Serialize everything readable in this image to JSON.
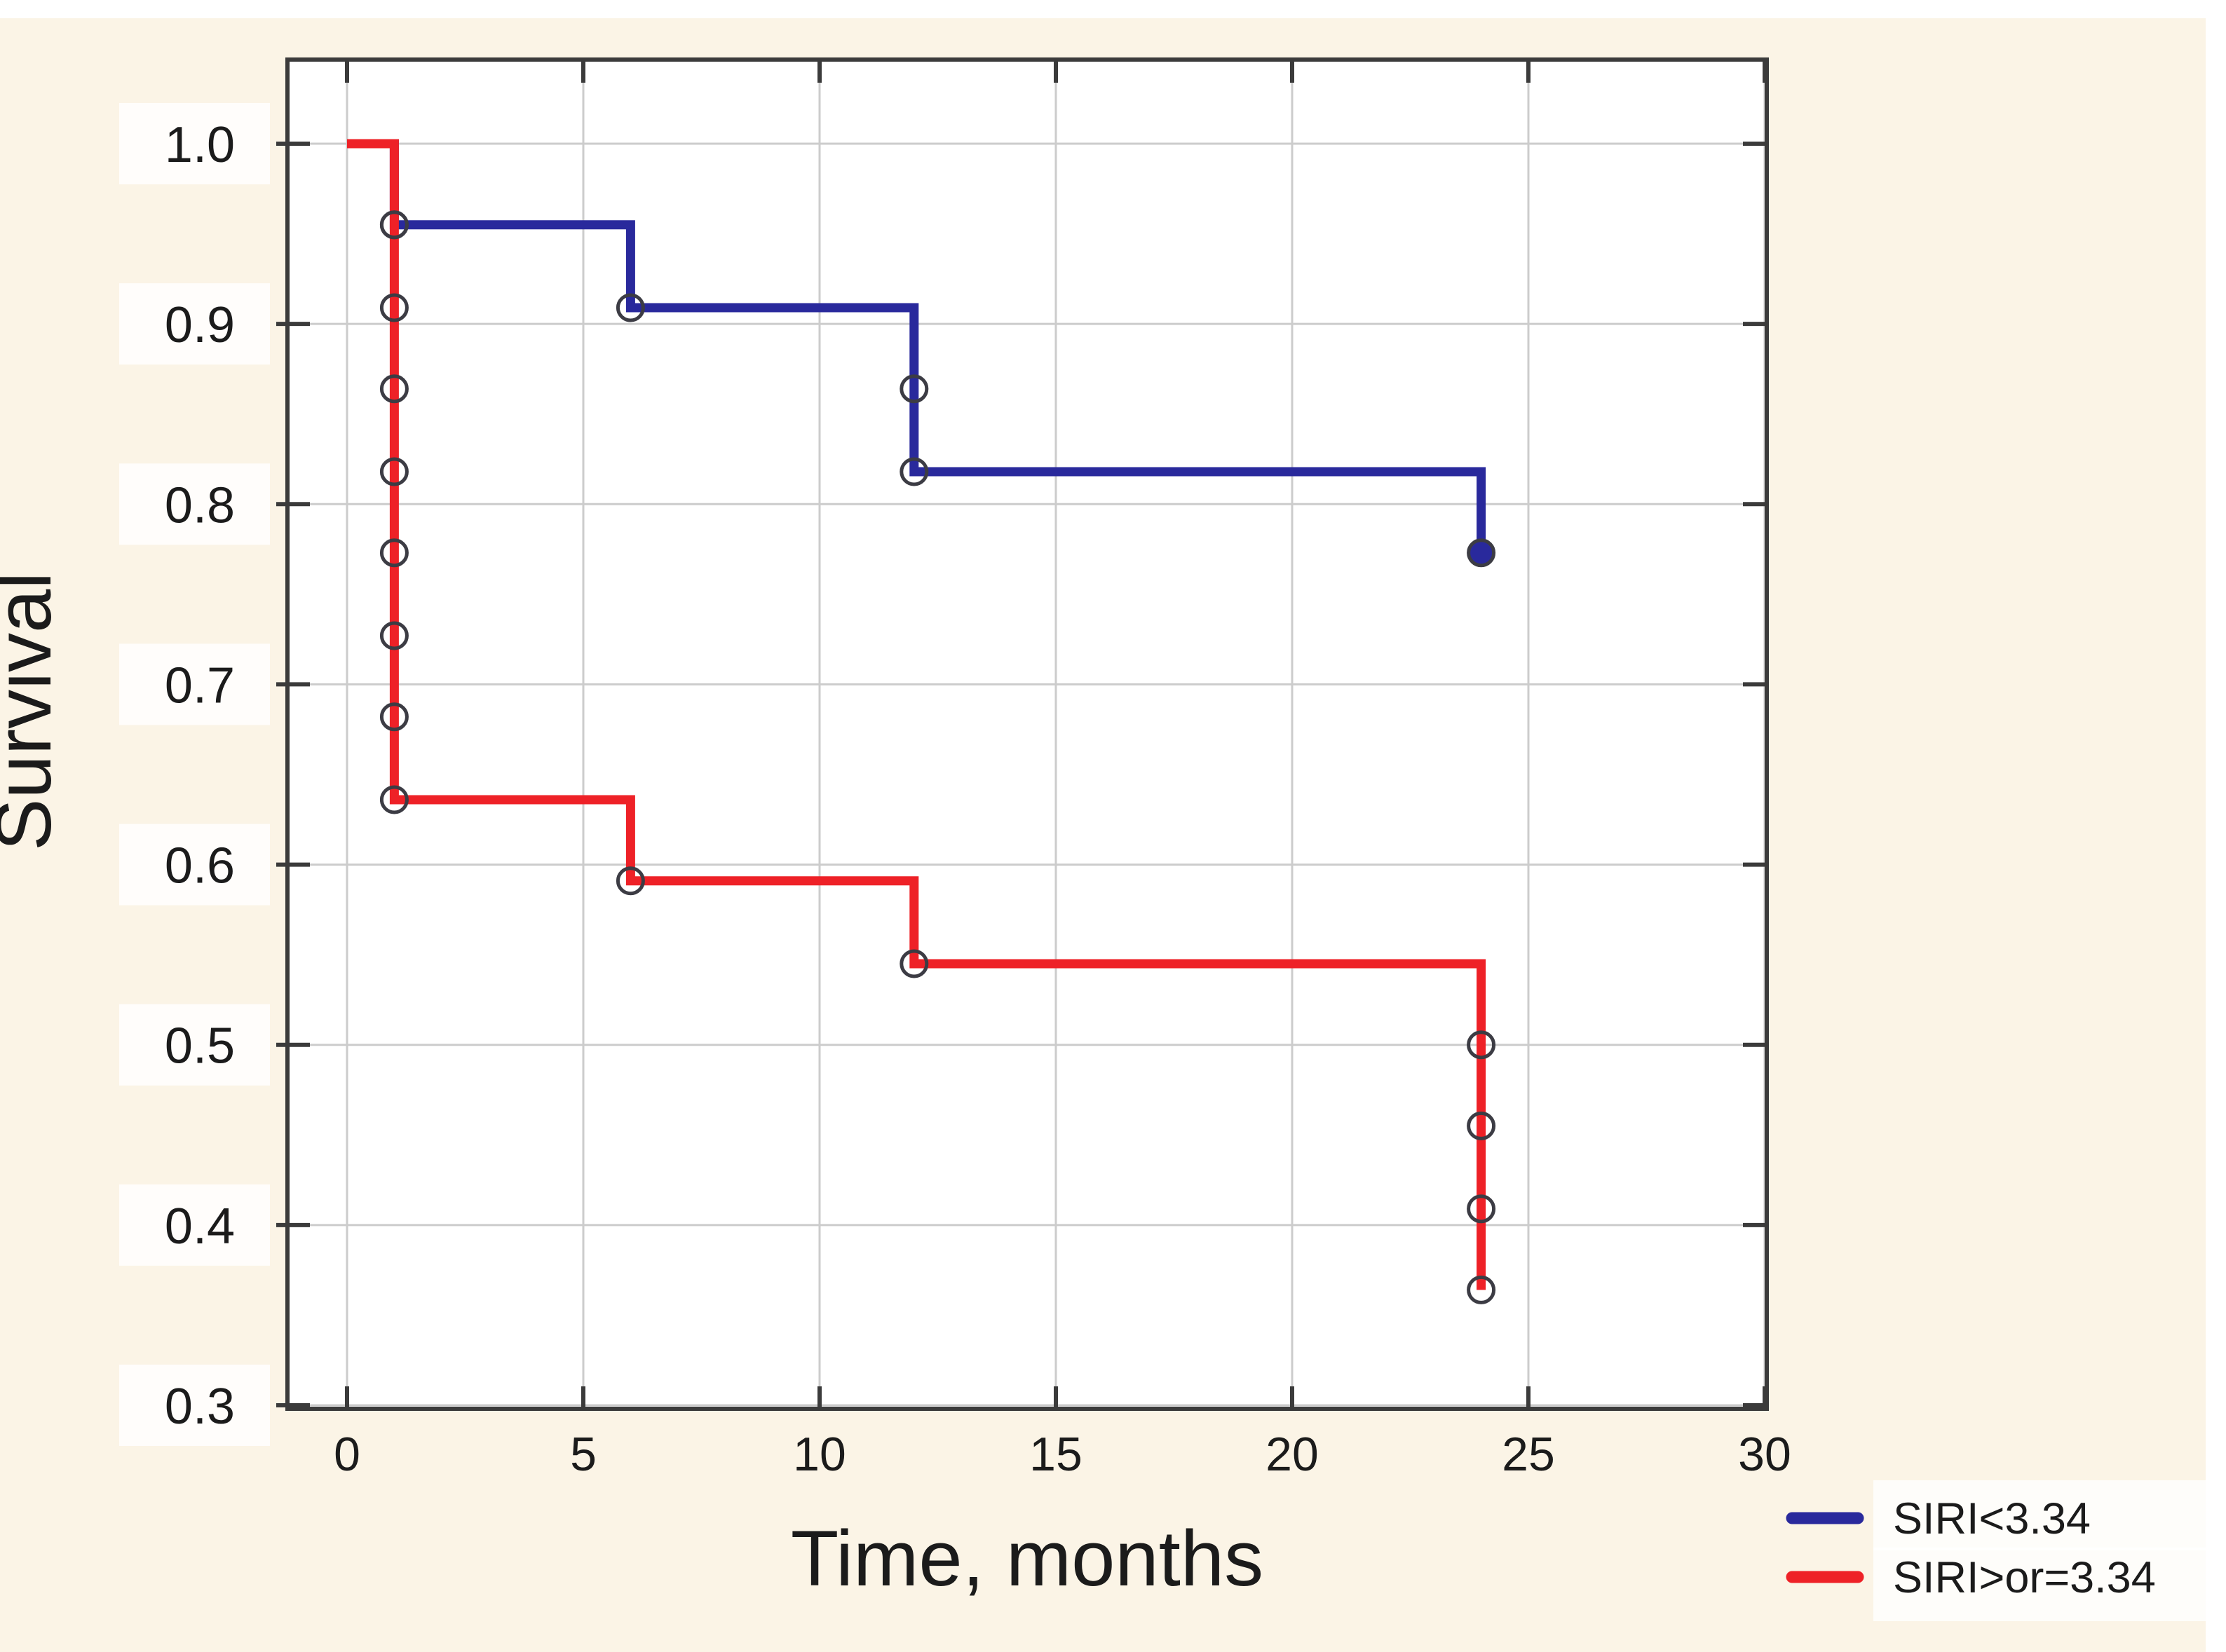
{
  "page": {
    "background": "#fbf4e6",
    "margin_color": "#ffffff"
  },
  "chart_data": {
    "type": "line",
    "chart_kind": "kaplan_meier_step_survival",
    "title": "",
    "xlabel": "Time, months",
    "ylabel": "Survival",
    "xlim": [
      0,
      30
    ],
    "ylim": [
      0.3,
      1.0
    ],
    "x_ticks": [
      0,
      5,
      10,
      15,
      20,
      25,
      30
    ],
    "y_tick_labels": [
      "1.0",
      "0.9",
      "0.8",
      "0.7",
      "0.6",
      "0.5",
      "0.4",
      "0.3"
    ],
    "y_tick_values": [
      1.0,
      0.9,
      0.8,
      0.7,
      0.6,
      0.5,
      0.4,
      0.3
    ],
    "grid": true,
    "legend_position": "bottom-right outside plot",
    "series": [
      {
        "name": "SIRI<3.34",
        "color": "#29299c",
        "line_style": "step",
        "steps_x": [
          0,
          1,
          1,
          6,
          6,
          12,
          12,
          24,
          24
        ],
        "steps_y": [
          1.0,
          1.0,
          0.955,
          0.955,
          0.909,
          0.909,
          0.818,
          0.818,
          0.773
        ],
        "markers": [
          [
            1,
            0.955
          ],
          [
            6,
            0.909
          ],
          [
            12,
            0.864
          ],
          [
            12,
            0.818
          ],
          [
            24,
            0.773
          ]
        ],
        "end_marker_filled": true
      },
      {
        "name": "SIRI>or=3.34",
        "color": "#ee2127",
        "line_style": "step",
        "steps_x": [
          0,
          1,
          1,
          6,
          6,
          12,
          12,
          24,
          24
        ],
        "steps_y": [
          1.0,
          1.0,
          0.636,
          0.636,
          0.591,
          0.591,
          0.545,
          0.545,
          0.364
        ],
        "markers": [
          [
            1,
            0.955
          ],
          [
            1,
            0.909
          ],
          [
            1,
            0.864
          ],
          [
            1,
            0.818
          ],
          [
            1,
            0.773
          ],
          [
            1,
            0.727
          ],
          [
            1,
            0.682
          ],
          [
            1,
            0.636
          ],
          [
            6,
            0.591
          ],
          [
            12,
            0.545
          ],
          [
            24,
            0.5
          ],
          [
            24,
            0.455
          ],
          [
            24,
            0.409
          ],
          [
            24,
            0.364
          ]
        ],
        "end_marker_filled": false
      }
    ],
    "styles": {
      "plot_bg": "#ffffff",
      "grid_color": "#cccccc",
      "frame_color": "#3b3b3b",
      "marker_stroke": "#3c3c44",
      "label_chip_color": "#ffffff",
      "text_color": "#1b1b1b"
    }
  }
}
